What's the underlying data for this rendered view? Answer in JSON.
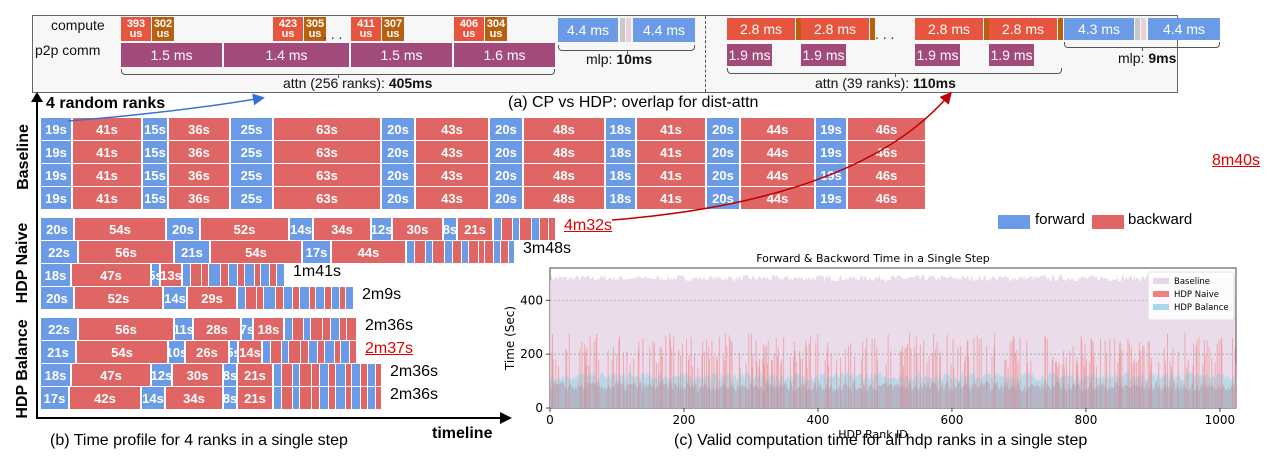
{
  "panel_a": {
    "caption": "(a) CP vs HDP: overlap for dist-attn",
    "row_labels": [
      "compute",
      "p2p comm"
    ],
    "cp": {
      "compute_pairs": [
        [
          "393",
          "us",
          "302",
          "us"
        ],
        [
          "423",
          "us",
          "305",
          "us"
        ],
        [
          "411",
          "us",
          "307",
          "us"
        ],
        [
          "406",
          "us",
          "304",
          "us"
        ]
      ],
      "comm": [
        "1.5 ms",
        "1.4 ms",
        "1.5 ms",
        "1.6 ms"
      ],
      "mlp": [
        "4.4 ms",
        "4.4 ms"
      ],
      "mlp_label_prefix": "mlp: ",
      "mlp_label_value": "10ms",
      "attn_label_prefix": "attn (256 ranks): ",
      "attn_label_value": "405ms",
      "ellipsis": ". . ."
    },
    "hdp": {
      "compute": [
        "2.8 ms",
        "2.8 ms",
        "2.8 ms",
        "2.8 ms"
      ],
      "comm": [
        "1.9 ms",
        "1.9 ms",
        "1.9 ms",
        "1.9 ms"
      ],
      "mlp": [
        "4.3 ms",
        "4.4 ms"
      ],
      "mlp_label_prefix": "mlp: ",
      "mlp_label_value": "9ms",
      "attn_label_prefix": "attn (39 ranks): ",
      "attn_label_value": "110ms",
      "ellipsis": ". . ."
    },
    "colors": {
      "compute_attn": "#e8553f",
      "compute_small": "#b8600e",
      "comm": "#a24a7a",
      "mlp": "#6b9be6"
    }
  },
  "panel_b": {
    "caption": "(b) Time profile for 4 ranks in a single step",
    "annotation": "4 random ranks",
    "axis_label": "timeline",
    "legend": {
      "forward": "forward",
      "backward": "backward"
    },
    "colors": {
      "forward": "#6b9be6",
      "backward": "#e06666",
      "highlight": "#e00000"
    },
    "groups": [
      {
        "name": "Baseline",
        "total_shared": "8m40s",
        "rows": [
          {
            "segments": [
              [
                "f",
                19
              ],
              [
                "b",
                41
              ],
              [
                "f",
                15
              ],
              [
                "b",
                36
              ],
              [
                "f",
                25
              ],
              [
                "b",
                63
              ],
              [
                "f",
                20
              ],
              [
                "b",
                43
              ],
              [
                "f",
                20
              ],
              [
                "b",
                48
              ],
              [
                "f",
                18
              ],
              [
                "b",
                41
              ],
              [
                "f",
                20
              ],
              [
                "b",
                44
              ],
              [
                "f",
                19
              ],
              [
                "b",
                46
              ]
            ]
          },
          {
            "segments": [
              [
                "f",
                19
              ],
              [
                "b",
                41
              ],
              [
                "f",
                15
              ],
              [
                "b",
                36
              ],
              [
                "f",
                25
              ],
              [
                "b",
                63
              ],
              [
                "f",
                20
              ],
              [
                "b",
                43
              ],
              [
                "f",
                20
              ],
              [
                "b",
                48
              ],
              [
                "f",
                18
              ],
              [
                "b",
                41
              ],
              [
                "f",
                20
              ],
              [
                "b",
                44
              ],
              [
                "f",
                19
              ],
              [
                "b",
                46
              ]
            ]
          },
          {
            "segments": [
              [
                "f",
                19
              ],
              [
                "b",
                41
              ],
              [
                "f",
                15
              ],
              [
                "b",
                36
              ],
              [
                "f",
                25
              ],
              [
                "b",
                63
              ],
              [
                "f",
                20
              ],
              [
                "b",
                43
              ],
              [
                "f",
                20
              ],
              [
                "b",
                48
              ],
              [
                "f",
                18
              ],
              [
                "b",
                41
              ],
              [
                "f",
                20
              ],
              [
                "b",
                44
              ],
              [
                "f",
                19
              ],
              [
                "b",
                46
              ]
            ]
          },
          {
            "segments": [
              [
                "f",
                19
              ],
              [
                "b",
                41
              ],
              [
                "f",
                15
              ],
              [
                "b",
                36
              ],
              [
                "f",
                25
              ],
              [
                "b",
                63
              ],
              [
                "f",
                20
              ],
              [
                "b",
                43
              ],
              [
                "f",
                20
              ],
              [
                "b",
                48
              ],
              [
                "f",
                18
              ],
              [
                "b",
                41
              ],
              [
                "f",
                20
              ],
              [
                "b",
                44
              ],
              [
                "f",
                19
              ],
              [
                "b",
                46
              ]
            ]
          }
        ]
      },
      {
        "name": "HDP Naive",
        "rows": [
          {
            "total": "4m32s",
            "highlight": true,
            "segments": [
              [
                "f",
                20
              ],
              [
                "b",
                54
              ],
              [
                "f",
                20
              ],
              [
                "b",
                52
              ],
              [
                "f",
                14
              ],
              [
                "b",
                34
              ],
              [
                "f",
                12
              ],
              [
                "b",
                30
              ],
              [
                "f",
                8
              ],
              [
                "b",
                21
              ]
            ],
            "tail": "fbfbfbb"
          },
          {
            "total": "3m48s",
            "segments": [
              [
                "f",
                22
              ],
              [
                "b",
                56
              ],
              [
                "f",
                21
              ],
              [
                "b",
                54
              ],
              [
                "f",
                17
              ],
              [
                "b",
                44
              ]
            ],
            "tail": "fbfbfbfbbbfbf"
          },
          {
            "total": "1m41s",
            "segments": [
              [
                "f",
                18
              ],
              [
                "b",
                47
              ],
              [
                "f",
                5
              ],
              [
                "b",
                13
              ]
            ],
            "tail": "fbbfbfbfbfbf"
          },
          {
            "total": "2m9s",
            "segments": [
              [
                "f",
                20
              ],
              [
                "b",
                52
              ],
              [
                "f",
                14
              ],
              [
                "b",
                29
              ]
            ],
            "tail": "fbbfbfbfbfbfbf"
          }
        ]
      },
      {
        "name": "HDP Balance",
        "rows": [
          {
            "total": "2m36s",
            "segments": [
              [
                "f",
                22
              ],
              [
                "b",
                56
              ],
              [
                "f",
                11
              ],
              [
                "b",
                28
              ],
              [
                "f",
                7
              ],
              [
                "b",
                18
              ]
            ],
            "tail": "fbfbbfbb"
          },
          {
            "total": "2m37s",
            "highlight": true,
            "segments": [
              [
                "f",
                21
              ],
              [
                "b",
                54
              ],
              [
                "f",
                10
              ],
              [
                "b",
                26
              ],
              [
                "f",
                5
              ],
              [
                "b",
                14
              ]
            ],
            "tail": "fbfbbfbfbfb"
          },
          {
            "total": "2m36s",
            "segments": [
              [
                "f",
                18
              ],
              [
                "b",
                47
              ],
              [
                "f",
                12
              ],
              [
                "b",
                30
              ],
              [
                "f",
                8
              ],
              [
                "b",
                21
              ]
            ],
            "tail": "fbfbbfbfbfbfb"
          },
          {
            "total": "2m36s",
            "segments": [
              [
                "f",
                17
              ],
              [
                "b",
                42
              ],
              [
                "f",
                14
              ],
              [
                "b",
                34
              ],
              [
                "f",
                8
              ],
              [
                "b",
                21
              ]
            ],
            "tail": "fbfbbfbfbfbfb"
          }
        ]
      }
    ]
  },
  "panel_c": {
    "caption": "(c) Valid computation time for all hdp ranks in a single step",
    "chart_data": {
      "type": "bar",
      "title": "Forward & Backword Time in a Single Step",
      "xlabel": "HDP Rank ID",
      "ylabel": "Time (Sec)",
      "xlim": [
        0,
        1024
      ],
      "ylim": [
        0,
        520
      ],
      "xticks": [
        0,
        200,
        400,
        600,
        800,
        1000
      ],
      "yticks": [
        0,
        200,
        400
      ],
      "grid": "horizontal dotted",
      "legend_position": "top-right",
      "series": [
        {
          "name": "Baseline",
          "color": "#e8d6e8",
          "typical_value": 480,
          "range": [
            470,
            495
          ]
        },
        {
          "name": "HDP Naive",
          "color": "#f08080",
          "typical_value": 90,
          "spike_values_range": [
            150,
            280
          ],
          "range": [
            60,
            280
          ]
        },
        {
          "name": "HDP Balance",
          "color": "#a8d8ea",
          "typical_value": 120,
          "range": [
            100,
            135
          ]
        }
      ]
    }
  }
}
